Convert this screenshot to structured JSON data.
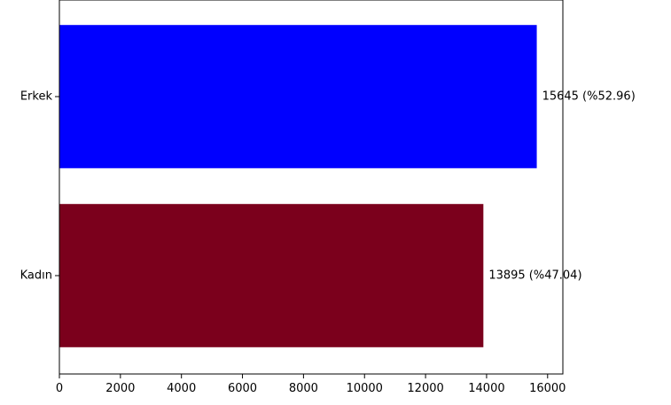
{
  "chart_data": {
    "type": "bar",
    "orientation": "horizontal",
    "categories": [
      "Erkek",
      "Kadın"
    ],
    "values": [
      15645,
      13895
    ],
    "labels": [
      "15645 (%52.96)",
      "13895 (%47.04)"
    ],
    "colors": [
      "#0000ff",
      "#7b001c"
    ],
    "xlim": [
      0,
      16500
    ],
    "xticks": [
      0,
      2000,
      4000,
      6000,
      8000,
      10000,
      12000,
      14000,
      16000
    ],
    "xtick_labels": [
      "0",
      "2000",
      "4000",
      "6000",
      "8000",
      "10000",
      "12000",
      "14000",
      "16000"
    ],
    "grid": false,
    "legend": "none"
  }
}
